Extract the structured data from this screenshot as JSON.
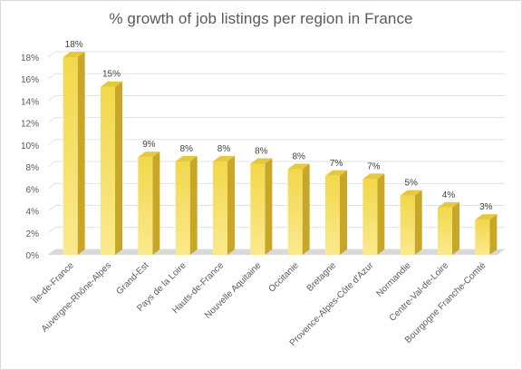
{
  "chart_data": {
    "type": "bar",
    "title": "% growth of job listings per region in France",
    "xlabel": "",
    "ylabel": "",
    "categories": [
      "Île-de-France",
      "Auvergne-Rhône-Alpes",
      "Grand-Est",
      "Pays de la Loire",
      "Hauts-de-France",
      "Nouvelle Aquitaine",
      "Occitanie",
      "Bretagne",
      "Provence-Alpes-Côte d'Azur",
      "Normandie",
      "Centre-Val-de-Loire",
      "Bourgogne Franche-Comté"
    ],
    "values": [
      18,
      15.3,
      8.9,
      8.5,
      8.5,
      8.3,
      7.8,
      7.2,
      6.9,
      5.4,
      4.3,
      3.2
    ],
    "data_labels": [
      "18%",
      "15%",
      "9%",
      "8%",
      "8%",
      "8%",
      "8%",
      "7%",
      "7%",
      "5%",
      "4%",
      "3%"
    ],
    "ylim": [
      0,
      18
    ],
    "yticks": [
      0,
      2,
      4,
      6,
      8,
      10,
      12,
      14,
      16,
      18
    ],
    "ytick_labels": [
      "0%",
      "2%",
      "4%",
      "6%",
      "8%",
      "10%",
      "12%",
      "14%",
      "16%",
      "18%"
    ],
    "grid": true,
    "legend": "none",
    "style": "3d-bar",
    "colors": {
      "bar_front_top": "#f2d84a",
      "bar_front_bottom": "#fbe98e",
      "bar_side": "#c8a628",
      "bar_top": "#e6c83c",
      "floor": "#d9d9d9",
      "grid": "#e3e3e3"
    }
  }
}
